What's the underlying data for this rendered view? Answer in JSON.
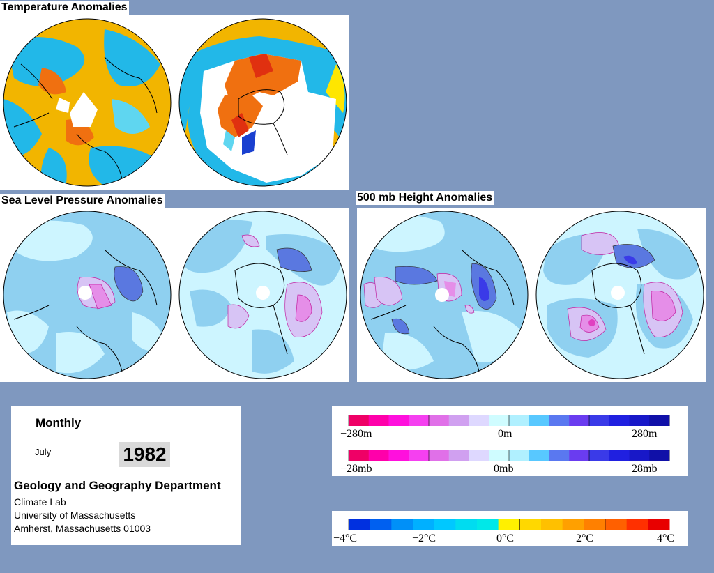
{
  "panels": {
    "temperature_title": "Temperature Anomalies",
    "slp_title": "Sea Level Pressure Anomalies",
    "height_title": "500 mb Height Anomalies"
  },
  "info": {
    "frequency": "Monthly",
    "month": "July",
    "year": "1982",
    "department": "Geology and Geography Department",
    "lab": "Climate Lab",
    "university": "University of Massachusetts",
    "address": "Amherst, Massachusetts 01003"
  },
  "legends": {
    "height": {
      "colors": [
        "#ef0066",
        "#ff00aa",
        "#ff10dd",
        "#f540f0",
        "#e070e8",
        "#d0a0f0",
        "#ded8ff",
        "#cffcff",
        "#b0f0ff",
        "#58c8ff",
        "#5a78f0",
        "#6a3cf0",
        "#3a3ae8",
        "#2020e0",
        "#1818c8",
        "#1010a8"
      ],
      "labels": [
        "−280m",
        "0m",
        "280m"
      ]
    },
    "pressure": {
      "colors": [
        "#ef0066",
        "#ff00aa",
        "#ff10dd",
        "#f540f0",
        "#e070e8",
        "#d0a0f0",
        "#ded8ff",
        "#cffcff",
        "#b0f0ff",
        "#58c8ff",
        "#5a78f0",
        "#6a3cf0",
        "#3a3ae8",
        "#2020e0",
        "#1818c8",
        "#1010a8"
      ],
      "labels": [
        "−28mb",
        "0mb",
        "28mb"
      ]
    },
    "temperature": {
      "colors": [
        "#0030e0",
        "#0060f0",
        "#0090f8",
        "#00b0ff",
        "#00c8ff",
        "#00dcf0",
        "#00e8e8",
        "#fff000",
        "#ffd800",
        "#ffc000",
        "#ffa000",
        "#ff8000",
        "#ff6000",
        "#ff3000",
        "#e80000"
      ],
      "labels": [
        "−4°C",
        "−2°C",
        "0°C",
        "2°C",
        "4°C"
      ]
    }
  },
  "map_colors": {
    "temp_warm": "#f2b500",
    "temp_yellow": "#ffe600",
    "temp_cool": "#22b8e8",
    "temp_light": "#5fd6f0",
    "temp_red": "#e03010",
    "temp_orange": "#f07010",
    "pres_base": "#cdf5ff",
    "pres_mid": "#8fd0f0",
    "pres_blue": "#5a78e0",
    "pres_lav": "#d7c4f5",
    "pres_pink": "#e58ee8",
    "pres_magenta": "#e040c0"
  }
}
